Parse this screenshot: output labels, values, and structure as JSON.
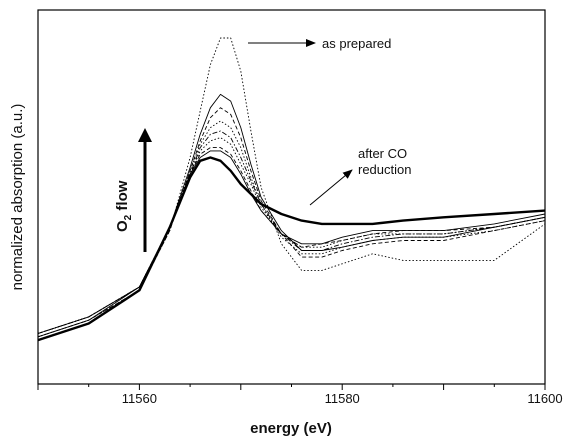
{
  "chart_data": {
    "type": "line",
    "title": "",
    "xlabel": "energy (eV)",
    "ylabel": "normalized absorption (a.u.)",
    "xlim": [
      11550,
      11600
    ],
    "ylim": [
      0,
      1
    ],
    "x_ticks": [
      11560,
      11580,
      11600
    ],
    "y_ticks_labeled": false,
    "grid": false,
    "legend": "none",
    "annotations": {
      "as_prepared": "as prepared",
      "after_co_line1": "after CO",
      "after_co_line2": "reduction",
      "o2_flow_main": "O",
      "o2_flow_sub": "2",
      "o2_flow_rest": " flow"
    },
    "x": [
      11550,
      11555,
      11560,
      11563,
      11565,
      11566,
      11567,
      11568,
      11569,
      11570,
      11571,
      11572,
      11574,
      11576,
      11578,
      11580,
      11583,
      11586,
      11590,
      11595,
      11600
    ],
    "series": [
      {
        "style": "thin-dotted",
        "values": [
          0.1,
          0.15,
          0.24,
          0.42,
          0.64,
          0.78,
          0.92,
          1.0,
          1.0,
          0.9,
          0.72,
          0.55,
          0.38,
          0.3,
          0.3,
          0.32,
          0.35,
          0.33,
          0.33,
          0.33,
          0.44
        ]
      },
      {
        "style": "thin-solid",
        "values": [
          0.1,
          0.15,
          0.25,
          0.43,
          0.61,
          0.71,
          0.79,
          0.83,
          0.81,
          0.73,
          0.62,
          0.52,
          0.42,
          0.36,
          0.36,
          0.37,
          0.39,
          0.4,
          0.4,
          0.43,
          0.46
        ]
      },
      {
        "style": "thin-dashed",
        "values": [
          0.1,
          0.15,
          0.24,
          0.42,
          0.6,
          0.69,
          0.76,
          0.79,
          0.77,
          0.7,
          0.6,
          0.51,
          0.41,
          0.34,
          0.34,
          0.36,
          0.38,
          0.39,
          0.39,
          0.42,
          0.45
        ]
      },
      {
        "style": "thin-dotted",
        "values": [
          0.11,
          0.16,
          0.25,
          0.43,
          0.6,
          0.68,
          0.73,
          0.75,
          0.73,
          0.67,
          0.58,
          0.5,
          0.4,
          0.35,
          0.35,
          0.37,
          0.39,
          0.4,
          0.4,
          0.42,
          0.45
        ]
      },
      {
        "style": "thin-dashdot",
        "values": [
          0.11,
          0.16,
          0.25,
          0.43,
          0.59,
          0.67,
          0.71,
          0.72,
          0.7,
          0.64,
          0.57,
          0.5,
          0.41,
          0.36,
          0.36,
          0.38,
          0.4,
          0.41,
          0.41,
          0.43,
          0.46
        ]
      },
      {
        "style": "thin-dotted",
        "values": [
          0.11,
          0.16,
          0.25,
          0.43,
          0.59,
          0.66,
          0.69,
          0.7,
          0.68,
          0.62,
          0.56,
          0.49,
          0.41,
          0.37,
          0.37,
          0.39,
          0.41,
          0.41,
          0.41,
          0.43,
          0.46
        ]
      },
      {
        "style": "thin-dashed",
        "values": [
          0.11,
          0.16,
          0.25,
          0.43,
          0.59,
          0.65,
          0.67,
          0.67,
          0.65,
          0.6,
          0.54,
          0.48,
          0.41,
          0.37,
          0.38,
          0.39,
          0.41,
          0.42,
          0.42,
          0.43,
          0.46
        ]
      },
      {
        "style": "thin-solid",
        "values": [
          0.11,
          0.16,
          0.25,
          0.43,
          0.59,
          0.64,
          0.66,
          0.66,
          0.64,
          0.59,
          0.53,
          0.48,
          0.41,
          0.38,
          0.38,
          0.4,
          0.42,
          0.42,
          0.42,
          0.44,
          0.47
        ]
      },
      {
        "style": "thick-solid",
        "values": [
          0.09,
          0.14,
          0.24,
          0.43,
          0.58,
          0.63,
          0.64,
          0.63,
          0.6,
          0.56,
          0.53,
          0.5,
          0.47,
          0.45,
          0.44,
          0.44,
          0.44,
          0.45,
          0.46,
          0.47,
          0.48
        ]
      }
    ]
  }
}
